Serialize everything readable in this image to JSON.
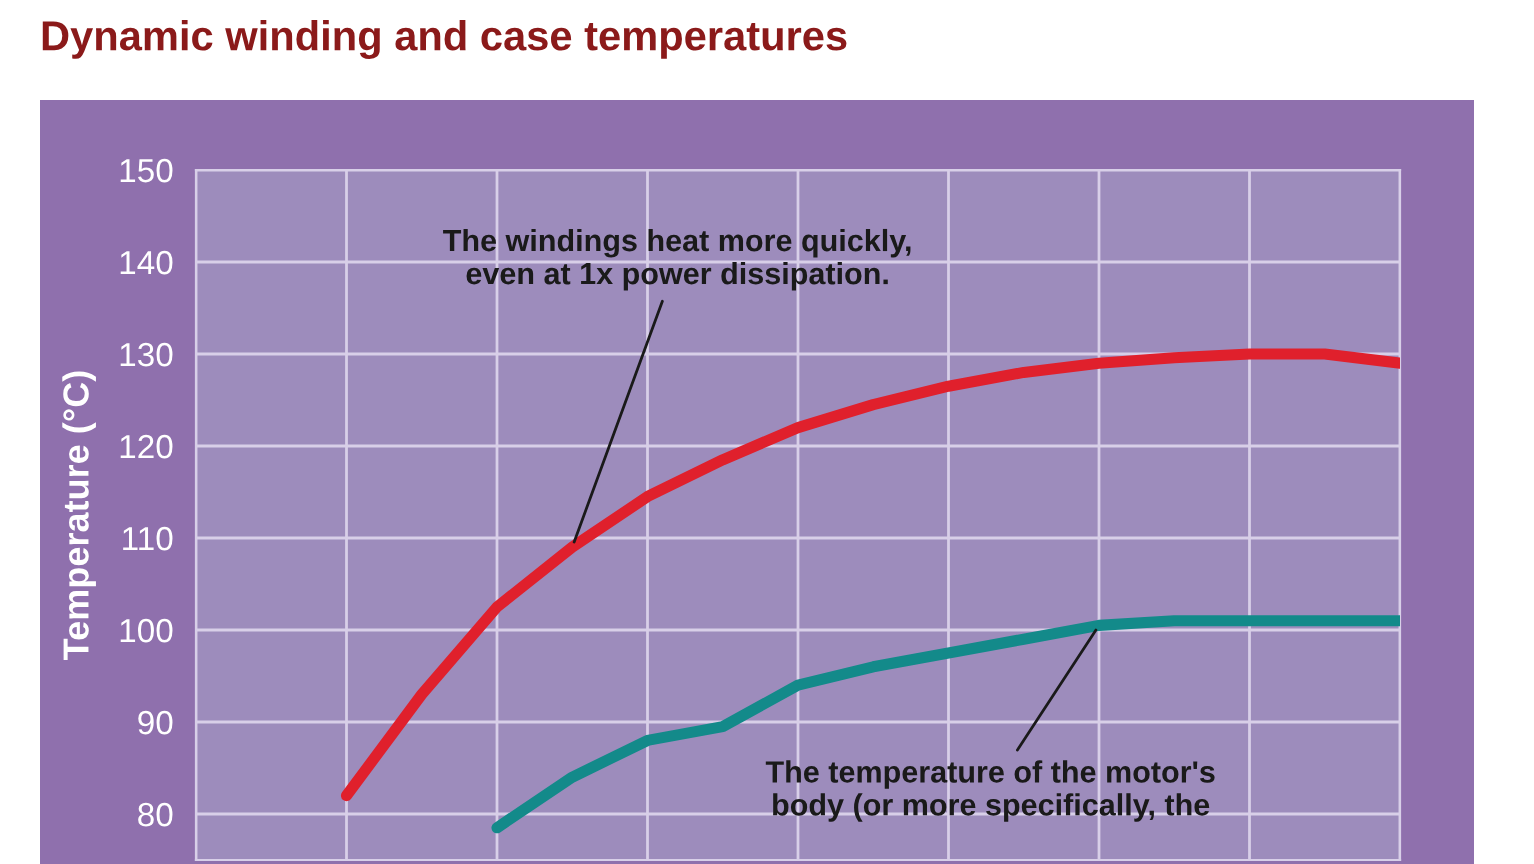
{
  "chart_data": {
    "type": "line",
    "title": "Dynamic winding and case temperatures",
    "ylabel": "Temperature (°C)",
    "categories": [
      null,
      null,
      null,
      null,
      null,
      null,
      null,
      null,
      null,
      null,
      null,
      null,
      null,
      null,
      null,
      null,
      null
    ],
    "series": [
      {
        "color": "#e0202c",
        "values": [
          null,
          null,
          82,
          93,
          102.5,
          109,
          114.5,
          118.5,
          122,
          124.5,
          126.5,
          128,
          129,
          129.6,
          130,
          130,
          129
        ]
      },
      {
        "color": "#138a8a",
        "values": [
          null,
          null,
          null,
          null,
          78.5,
          84,
          88,
          89.5,
          94,
          96,
          97.5,
          99,
          100.5,
          101,
          101,
          101,
          101
        ]
      }
    ],
    "ylim": [
      75,
      150
    ],
    "yticks": [
      80,
      90,
      100,
      110,
      120,
      130,
      140,
      150
    ],
    "grid": true,
    "line_style": "solid",
    "marker": "none",
    "annotations": [
      "The windings heat more quickly,\neven at 1x power dissipation.",
      "The temperature of the motor's\nbody (or more specifically, the"
    ]
  }
}
